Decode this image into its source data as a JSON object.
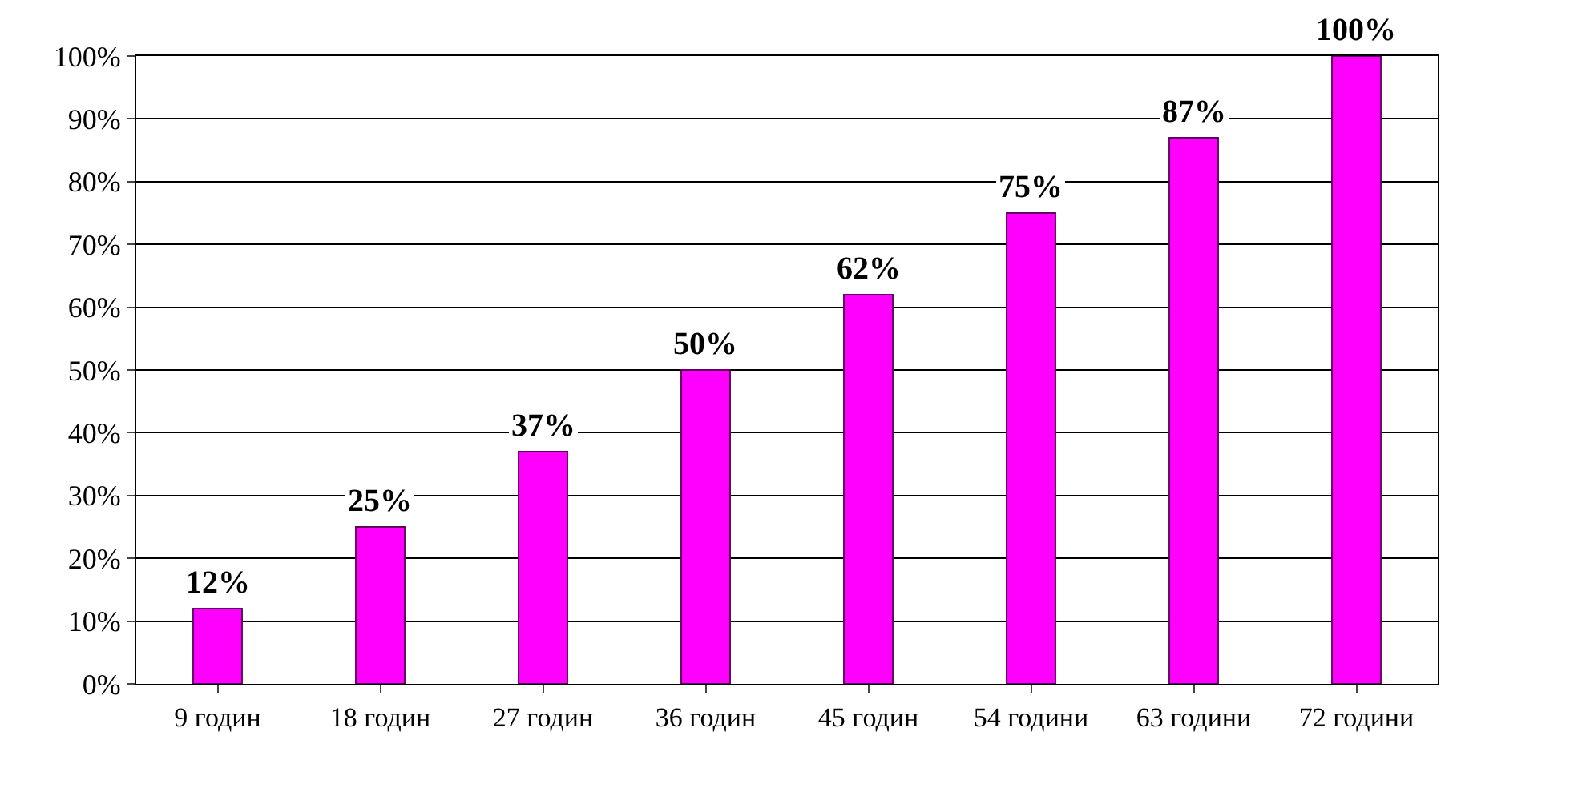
{
  "chart_data": {
    "type": "bar",
    "categories": [
      "9 годин",
      "18 годин",
      "27 годин",
      "36 годин",
      "45 годин",
      "54 години",
      "63 години",
      "72 години"
    ],
    "values": [
      12,
      25,
      37,
      50,
      62,
      75,
      87,
      100
    ],
    "value_labels": [
      "12%",
      "25%",
      "37%",
      "50%",
      "62%",
      "75%",
      "87%",
      "100%"
    ],
    "color": "#ff00ff",
    "ylim": [
      0,
      100
    ],
    "yticks": [
      {
        "value": 0,
        "label": "0%"
      },
      {
        "value": 10,
        "label": "10%"
      },
      {
        "value": 20,
        "label": "20%"
      },
      {
        "value": 30,
        "label": "30%"
      },
      {
        "value": 40,
        "label": "40%"
      },
      {
        "value": 50,
        "label": "50%"
      },
      {
        "value": 60,
        "label": "60%"
      },
      {
        "value": 70,
        "label": "70%"
      },
      {
        "value": 80,
        "label": "80%"
      },
      {
        "value": 90,
        "label": "90%"
      },
      {
        "value": 100,
        "label": "100%"
      }
    ],
    "grid": "y"
  }
}
